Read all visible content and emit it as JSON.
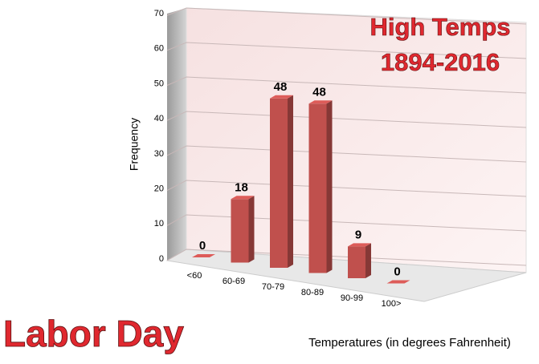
{
  "chart_data": {
    "type": "bar3d",
    "title": "High Temps",
    "subtitle": "1894-2016",
    "annotation": "Labor Day",
    "x_label": "Temperatures (in degrees Fahrenheit)",
    "y_label": "Frequency",
    "categories": [
      "<60",
      "60-69",
      "70-79",
      "80-89",
      "90-99",
      "100>"
    ],
    "values": [
      0,
      18,
      48,
      48,
      9,
      0
    ],
    "color": "#c0504d",
    "ylim": [
      0,
      70
    ],
    "yticks": [
      0,
      10,
      20,
      30,
      40,
      50,
      60,
      70
    ],
    "grid": true
  }
}
